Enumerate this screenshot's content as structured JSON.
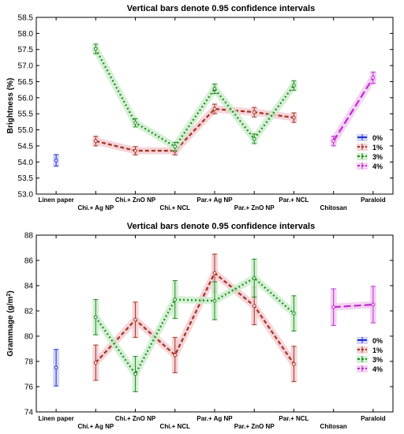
{
  "chart_data": [
    {
      "type": "line",
      "title": "Vertical bars denote 0.95 confidence intervals",
      "ylabel": "Brightness (%)",
      "xlabel": "",
      "ylim": [
        53.0,
        58.5
      ],
      "ytick_labels": [
        "53.0",
        "53.5",
        "54.0",
        "54.5",
        "55.0",
        "55.5",
        "56.0",
        "56.5",
        "57.0",
        "57.5",
        "58.0",
        "58.5"
      ],
      "categories": [
        "Linen paper",
        "Chi.+ Ag NP",
        "Chi.+ ZnO NP",
        "Chi.+ NCL",
        "Par.+ Ag NP",
        "Par.+ ZnO NP",
        "Par.+ NCL",
        "Chitosan",
        "Paraloid"
      ],
      "grid": false,
      "legend_position": "right",
      "series": [
        {
          "name": "0%",
          "color": "#1f2fd0",
          "values": [
            54.05,
            null,
            null,
            null,
            null,
            null,
            null,
            null,
            null
          ],
          "ci": [
            0.18,
            null,
            null,
            null,
            null,
            null,
            null,
            null,
            null
          ]
        },
        {
          "name": "1%",
          "color": "#a3331f",
          "values": [
            null,
            54.65,
            54.35,
            54.35,
            55.65,
            55.55,
            55.38,
            null,
            null
          ],
          "ci": [
            null,
            0.15,
            0.13,
            0.13,
            0.15,
            0.15,
            0.15,
            null,
            null
          ]
        },
        {
          "name": "3%",
          "color": "#1f8a1f",
          "values": [
            null,
            57.52,
            55.22,
            54.48,
            56.28,
            54.72,
            56.38,
            null,
            null
          ],
          "ci": [
            null,
            0.15,
            0.13,
            0.13,
            0.15,
            0.15,
            0.15,
            null,
            null
          ]
        },
        {
          "name": "4%",
          "color": "#c02bd0",
          "values": [
            null,
            null,
            null,
            null,
            null,
            null,
            null,
            54.65,
            56.62
          ],
          "ci": [
            null,
            null,
            null,
            null,
            null,
            null,
            null,
            0.15,
            0.18
          ]
        }
      ]
    },
    {
      "type": "line",
      "title": "Vertical bars denote 0.95 confidence intervals",
      "ylabel": "Grammage (g/m",
      "ylabel_sup": "2",
      "ylabel_close": ")",
      "xlabel": "",
      "ylim": [
        74,
        88
      ],
      "ytick_labels": [
        "74",
        "76",
        "78",
        "80",
        "82",
        "84",
        "86",
        "88"
      ],
      "categories": [
        "Linen paper",
        "Chi.+ Ag NP",
        "Chi.+ ZnO NP",
        "Chi.+ NCL",
        "Par.+ Ag NP",
        "Par.+ ZnO NP",
        "Par.+ NCL",
        "Chitosan",
        "Paraloid"
      ],
      "grid": false,
      "legend_position": "right",
      "series": [
        {
          "name": "0%",
          "color": "#1f2fd0",
          "values": [
            77.5,
            null,
            null,
            null,
            null,
            null,
            null,
            null,
            null
          ],
          "ci": [
            1.45,
            null,
            null,
            null,
            null,
            null,
            null,
            null,
            null
          ]
        },
        {
          "name": "1%",
          "color": "#a3331f",
          "values": [
            null,
            77.9,
            81.3,
            78.5,
            85.0,
            82.4,
            77.8,
            null,
            null
          ],
          "ci": [
            null,
            1.4,
            1.4,
            1.4,
            1.5,
            1.5,
            1.4,
            null,
            null
          ]
        },
        {
          "name": "3%",
          "color": "#1f8a1f",
          "values": [
            null,
            81.5,
            77.0,
            82.9,
            82.8,
            84.6,
            81.8,
            null,
            null
          ],
          "ci": [
            null,
            1.4,
            1.4,
            1.5,
            1.5,
            1.5,
            1.4,
            null,
            null
          ]
        },
        {
          "name": "4%",
          "color": "#c02bd0",
          "values": [
            null,
            null,
            null,
            null,
            null,
            null,
            null,
            82.3,
            82.5
          ],
          "ci": [
            null,
            null,
            null,
            null,
            null,
            null,
            null,
            1.45,
            1.45
          ]
        }
      ]
    }
  ]
}
